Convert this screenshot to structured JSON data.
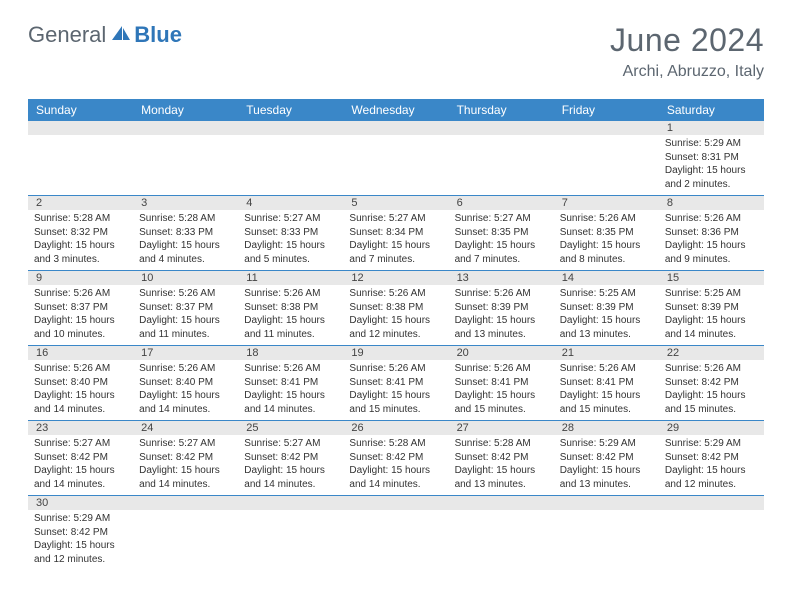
{
  "logo": {
    "text1": "General",
    "text2": "Blue"
  },
  "title": "June 2024",
  "location": "Archi, Abruzzo, Italy",
  "colors": {
    "header_bg": "#3a87c8",
    "header_text": "#ffffff",
    "daynum_bg": "#e8e8e8",
    "border": "#3a87c8",
    "title_color": "#5c6670",
    "logo_gray": "#5c6670",
    "logo_blue": "#2f76b8"
  },
  "day_names": [
    "Sunday",
    "Monday",
    "Tuesday",
    "Wednesday",
    "Thursday",
    "Friday",
    "Saturday"
  ],
  "weeks": [
    {
      "nums": [
        "",
        "",
        "",
        "",
        "",
        "",
        "1"
      ],
      "data": [
        "",
        "",
        "",
        "",
        "",
        "",
        "Sunrise: 5:29 AM\nSunset: 8:31 PM\nDaylight: 15 hours and 2 minutes."
      ]
    },
    {
      "nums": [
        "2",
        "3",
        "4",
        "5",
        "6",
        "7",
        "8"
      ],
      "data": [
        "Sunrise: 5:28 AM\nSunset: 8:32 PM\nDaylight: 15 hours and 3 minutes.",
        "Sunrise: 5:28 AM\nSunset: 8:33 PM\nDaylight: 15 hours and 4 minutes.",
        "Sunrise: 5:27 AM\nSunset: 8:33 PM\nDaylight: 15 hours and 5 minutes.",
        "Sunrise: 5:27 AM\nSunset: 8:34 PM\nDaylight: 15 hours and 7 minutes.",
        "Sunrise: 5:27 AM\nSunset: 8:35 PM\nDaylight: 15 hours and 7 minutes.",
        "Sunrise: 5:26 AM\nSunset: 8:35 PM\nDaylight: 15 hours and 8 minutes.",
        "Sunrise: 5:26 AM\nSunset: 8:36 PM\nDaylight: 15 hours and 9 minutes."
      ]
    },
    {
      "nums": [
        "9",
        "10",
        "11",
        "12",
        "13",
        "14",
        "15"
      ],
      "data": [
        "Sunrise: 5:26 AM\nSunset: 8:37 PM\nDaylight: 15 hours and 10 minutes.",
        "Sunrise: 5:26 AM\nSunset: 8:37 PM\nDaylight: 15 hours and 11 minutes.",
        "Sunrise: 5:26 AM\nSunset: 8:38 PM\nDaylight: 15 hours and 11 minutes.",
        "Sunrise: 5:26 AM\nSunset: 8:38 PM\nDaylight: 15 hours and 12 minutes.",
        "Sunrise: 5:26 AM\nSunset: 8:39 PM\nDaylight: 15 hours and 13 minutes.",
        "Sunrise: 5:25 AM\nSunset: 8:39 PM\nDaylight: 15 hours and 13 minutes.",
        "Sunrise: 5:25 AM\nSunset: 8:39 PM\nDaylight: 15 hours and 14 minutes."
      ]
    },
    {
      "nums": [
        "16",
        "17",
        "18",
        "19",
        "20",
        "21",
        "22"
      ],
      "data": [
        "Sunrise: 5:26 AM\nSunset: 8:40 PM\nDaylight: 15 hours and 14 minutes.",
        "Sunrise: 5:26 AM\nSunset: 8:40 PM\nDaylight: 15 hours and 14 minutes.",
        "Sunrise: 5:26 AM\nSunset: 8:41 PM\nDaylight: 15 hours and 14 minutes.",
        "Sunrise: 5:26 AM\nSunset: 8:41 PM\nDaylight: 15 hours and 15 minutes.",
        "Sunrise: 5:26 AM\nSunset: 8:41 PM\nDaylight: 15 hours and 15 minutes.",
        "Sunrise: 5:26 AM\nSunset: 8:41 PM\nDaylight: 15 hours and 15 minutes.",
        "Sunrise: 5:26 AM\nSunset: 8:42 PM\nDaylight: 15 hours and 15 minutes."
      ]
    },
    {
      "nums": [
        "23",
        "24",
        "25",
        "26",
        "27",
        "28",
        "29"
      ],
      "data": [
        "Sunrise: 5:27 AM\nSunset: 8:42 PM\nDaylight: 15 hours and 14 minutes.",
        "Sunrise: 5:27 AM\nSunset: 8:42 PM\nDaylight: 15 hours and 14 minutes.",
        "Sunrise: 5:27 AM\nSunset: 8:42 PM\nDaylight: 15 hours and 14 minutes.",
        "Sunrise: 5:28 AM\nSunset: 8:42 PM\nDaylight: 15 hours and 14 minutes.",
        "Sunrise: 5:28 AM\nSunset: 8:42 PM\nDaylight: 15 hours and 13 minutes.",
        "Sunrise: 5:29 AM\nSunset: 8:42 PM\nDaylight: 15 hours and 13 minutes.",
        "Sunrise: 5:29 AM\nSunset: 8:42 PM\nDaylight: 15 hours and 12 minutes."
      ]
    },
    {
      "nums": [
        "30",
        "",
        "",
        "",
        "",
        "",
        ""
      ],
      "data": [
        "Sunrise: 5:29 AM\nSunset: 8:42 PM\nDaylight: 15 hours and 12 minutes.",
        "",
        "",
        "",
        "",
        "",
        ""
      ]
    }
  ]
}
